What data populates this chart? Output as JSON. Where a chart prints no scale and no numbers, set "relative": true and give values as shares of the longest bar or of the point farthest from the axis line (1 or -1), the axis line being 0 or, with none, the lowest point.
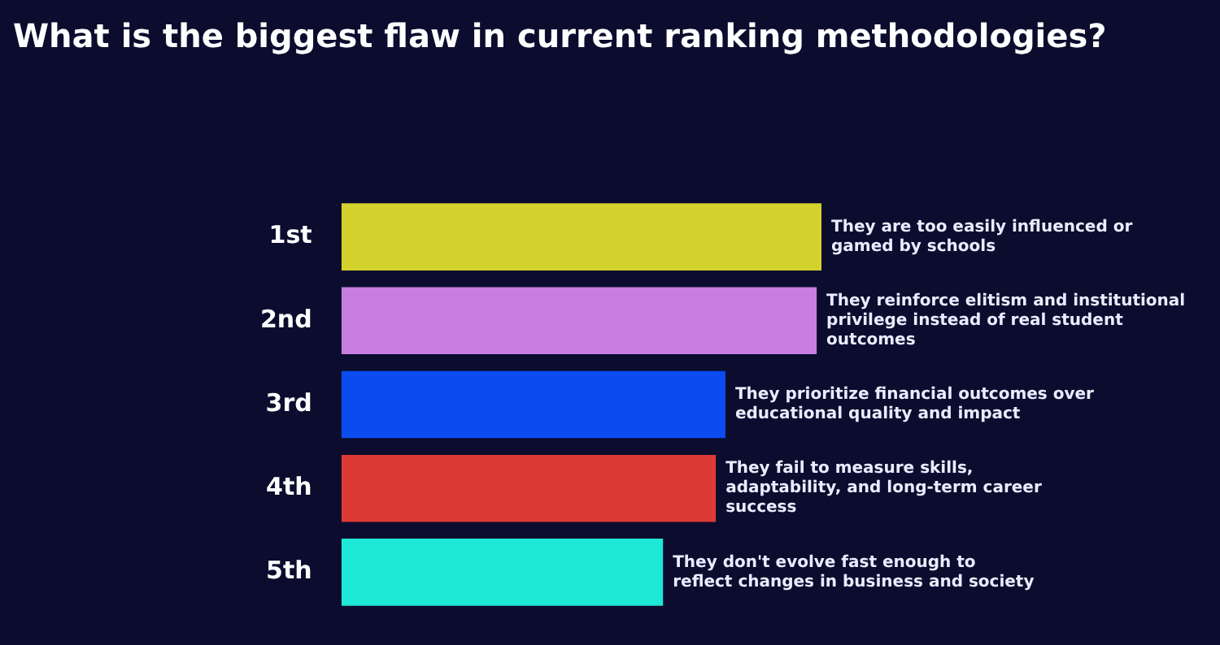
{
  "chart_data": {
    "type": "bar",
    "orientation": "horizontal",
    "relative": true,
    "title": "What is the biggest flaw in current ranking methodologies?",
    "categories": [
      "1st",
      "2nd",
      "3rd",
      "4th",
      "5th"
    ],
    "values": [
      1,
      0.99,
      0.8,
      0.78,
      0.67
    ],
    "colors": [
      "#d4d22c",
      "#c77ee0",
      "#0a4cf0",
      "#dc3a36",
      "#1ee8d6"
    ],
    "annotations": [
      {
        "text": "They are too easily influenced or gamed by schools",
        "x": 1,
        "y": "1st"
      },
      {
        "text": "They reinforce elitism and institutional privilege instead of real student outcomes",
        "x": 0.99,
        "y": "2nd"
      },
      {
        "text": "They prioritize financial outcomes over educational quality and impact",
        "x": 0.8,
        "y": "3rd"
      },
      {
        "text": "They fail to measure skills, adaptability, and long-term career success",
        "x": 0.78,
        "y": "4th"
      },
      {
        "text": "They don't evolve fast enough to reflect changes in business and society",
        "x": 0.67,
        "y": "5th"
      }
    ]
  }
}
